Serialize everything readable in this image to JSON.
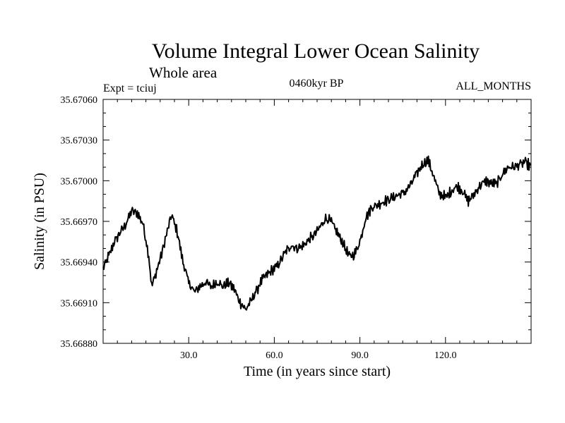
{
  "chart_data": {
    "type": "line",
    "title": "Volume Integral Lower Ocean Salinity",
    "subtitle": "Whole area",
    "experiment_label": "Expt = tciuj",
    "period_label": "0460kyr BP",
    "season_label": "ALL_MONTHS",
    "xlabel": "Time (in years since start)",
    "ylabel": "Salinity (in PSU)",
    "xlim": [
      0,
      150
    ],
    "ylim": [
      35.6688,
      35.6706
    ],
    "x_ticks": [
      30,
      60,
      90,
      120
    ],
    "x_tick_labels": [
      "30.0",
      "60.0",
      "90.0",
      "120.0"
    ],
    "y_ticks": [
      35.6688,
      35.6691,
      35.6694,
      35.6697,
      35.67,
      35.6703,
      35.6706
    ],
    "y_tick_labels": [
      "35.66880",
      "35.66910",
      "35.66940",
      "35.66970",
      "35.67000",
      "35.67030",
      "35.67060"
    ],
    "grid": false,
    "series": [
      {
        "name": "Salinity",
        "color": "#000000",
        "anchors_x": [
          0,
          2,
          4,
          6,
          8,
          10,
          12,
          14,
          16,
          17,
          19,
          21,
          23,
          24,
          26,
          28,
          30,
          32,
          34,
          36,
          38,
          40,
          42,
          44,
          46,
          48,
          50,
          52,
          54,
          56,
          58,
          60,
          62,
          64,
          66,
          68,
          70,
          72,
          74,
          76,
          78,
          80,
          82,
          84,
          86,
          88,
          90,
          92,
          94,
          96,
          98,
          100,
          102,
          104,
          106,
          108,
          110,
          112,
          114,
          116,
          118,
          120,
          122,
          124,
          126,
          128,
          130,
          132,
          134,
          136,
          138,
          140,
          142,
          144,
          146,
          148,
          150
        ],
        "anchors_y": [
          35.66935,
          35.66945,
          35.66955,
          35.66962,
          35.66968,
          35.66978,
          35.66976,
          35.66968,
          35.66944,
          35.66922,
          35.66935,
          35.6695,
          35.66967,
          35.66975,
          35.66962,
          35.6694,
          35.66925,
          35.66918,
          35.66922,
          35.66925,
          35.66922,
          35.66925,
          35.66922,
          35.66925,
          35.6692,
          35.6691,
          35.66905,
          35.66912,
          35.6692,
          35.66928,
          35.66932,
          35.66935,
          35.6694,
          35.66948,
          35.66952,
          35.6695,
          35.66952,
          35.66956,
          35.6696,
          35.66966,
          35.66972,
          35.6697,
          35.66962,
          35.66954,
          35.66945,
          35.66945,
          35.66955,
          35.66972,
          35.6698,
          35.66982,
          35.66984,
          35.66986,
          35.66988,
          35.6699,
          35.66992,
          35.66998,
          35.67006,
          35.67012,
          35.67015,
          35.67002,
          35.6699,
          35.66988,
          35.66992,
          35.66996,
          35.66992,
          35.66985,
          35.6699,
          35.66996,
          35.67,
          35.66998,
          35.66998,
          35.67005,
          35.6701,
          35.6701,
          35.67012,
          35.67014,
          35.6701
        ],
        "sample_step": 0.25,
        "noise_amplitude": 9e-05
      }
    ]
  }
}
